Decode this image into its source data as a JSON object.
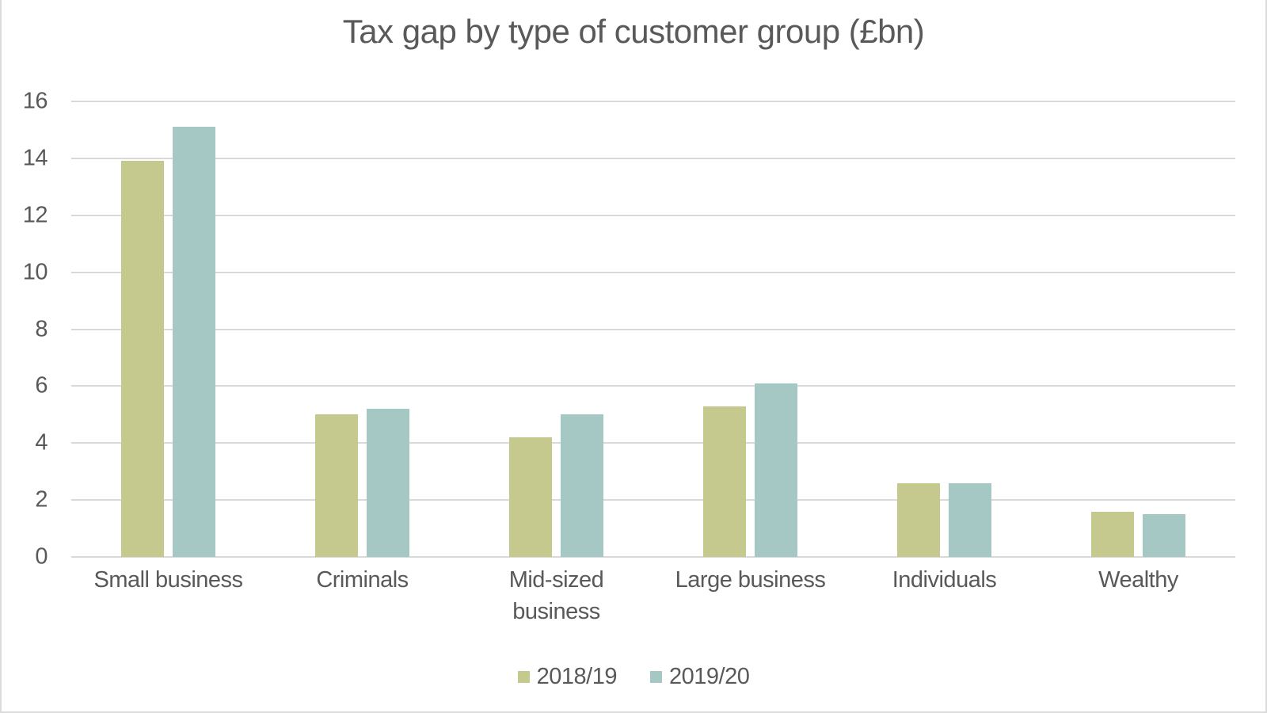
{
  "window": {
    "background": "#ffffff",
    "frame_border_color": "#dcdcdc"
  },
  "chart_data": {
    "type": "bar",
    "title": "Tax gap by type of customer group (£bn)",
    "categories": [
      "Small business",
      "Criminals",
      "Mid-sized business",
      "Large business",
      "Individuals",
      "Wealthy"
    ],
    "series": [
      {
        "name": "2018/19",
        "color": "#c5c98e",
        "values": [
          13.9,
          5.0,
          4.2,
          5.3,
          2.6,
          1.6
        ]
      },
      {
        "name": "2019/20",
        "color": "#a6c8c5",
        "values": [
          15.1,
          5.2,
          5.0,
          6.1,
          2.6,
          1.5
        ]
      }
    ],
    "xlabel": "",
    "ylabel": "",
    "ylim": [
      0,
      16
    ],
    "y_ticks": [
      16,
      14,
      12,
      10,
      8,
      6,
      4,
      2,
      0
    ],
    "grid": true,
    "legend_position": "bottom",
    "text_color": "#595959",
    "gridline_color": "#d9d9d9"
  }
}
